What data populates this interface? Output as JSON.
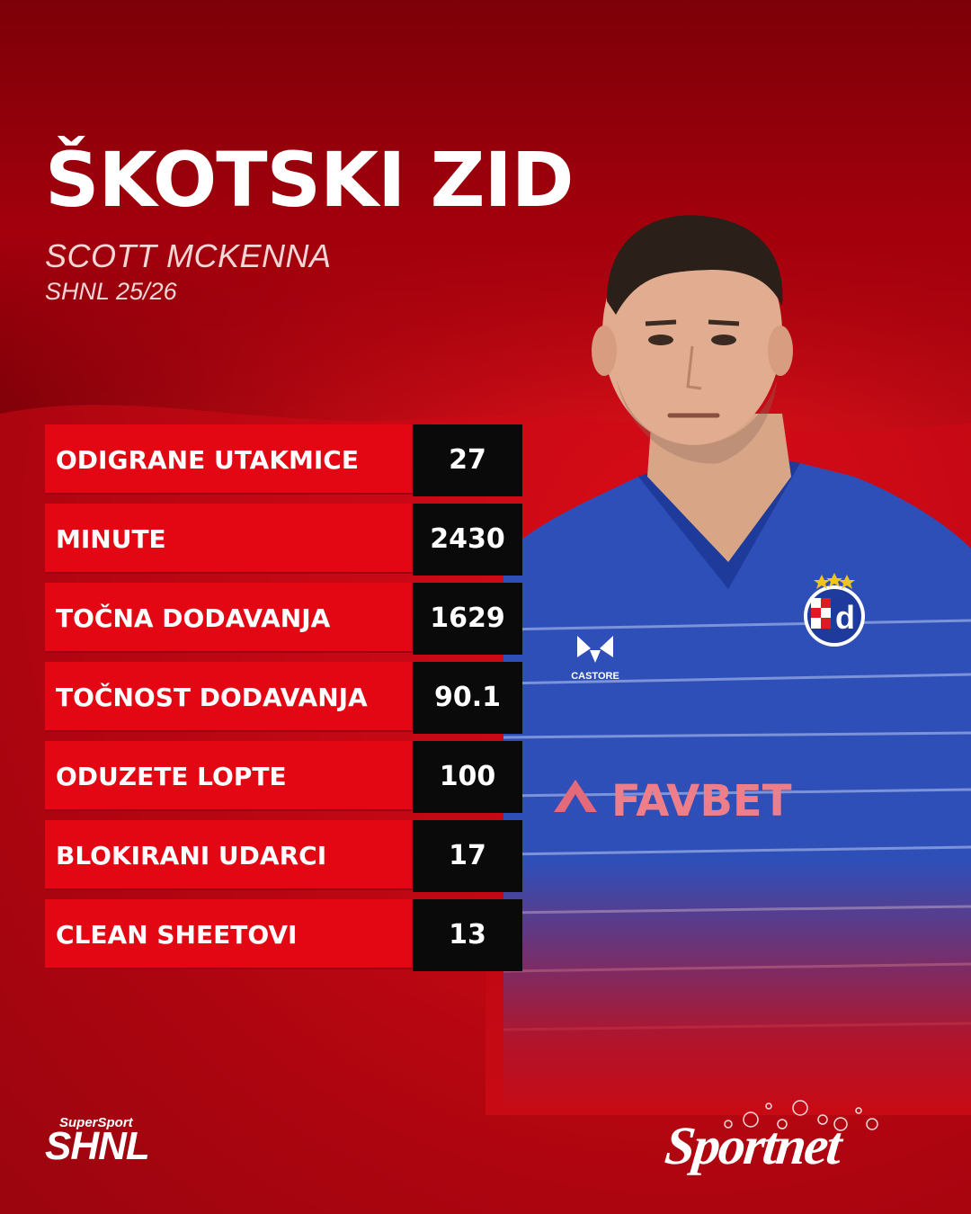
{
  "header": {
    "title": "ŠKOTSKI ZID",
    "player_name": "SCOTT MCKENNA",
    "competition_season": "SHNL 25/26"
  },
  "stats": [
    {
      "label": "ODIGRANE UTAKMICE",
      "value": "27"
    },
    {
      "label": "MINUTE",
      "value": "2430"
    },
    {
      "label": "TOČNA DODAVANJA",
      "value": "1629"
    },
    {
      "label": "TOČNOST DODAVANJA",
      "value": "90.1"
    },
    {
      "label": "ODUZETE LOPTE",
      "value": "100"
    },
    {
      "label": "BLOKIRANI UDARCI",
      "value": "17"
    },
    {
      "label": "CLEAN SHEETOVI",
      "value": "13"
    }
  ],
  "jersey": {
    "brand": "CASTORE",
    "sponsor": "FAVBET",
    "club_badge_letter": "d"
  },
  "logos": {
    "league_super": "SuperSport",
    "league_main": "SHNL",
    "publisher": "Sportnet"
  },
  "colors": {
    "accent_red": "#e30613",
    "value_box": "#0a0a0a",
    "jersey_blue": "#2f4fb8"
  }
}
